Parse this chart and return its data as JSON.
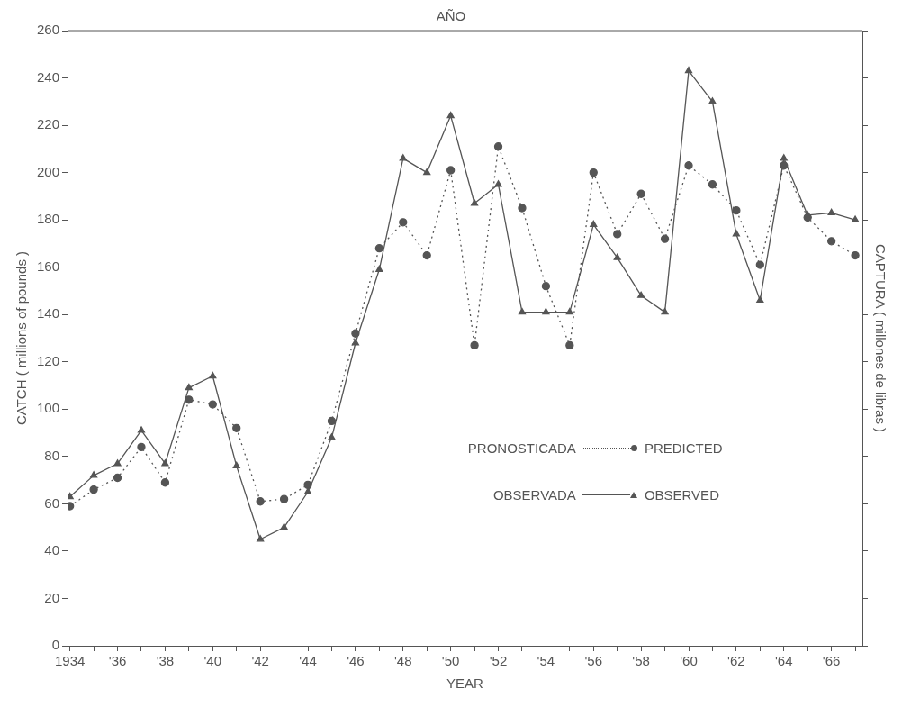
{
  "chart_data": {
    "type": "line",
    "title": "AÑO",
    "xlabel": "YEAR",
    "ylabel": "CATCH ( millions of pounds )",
    "y2label": "CAPTURA ( millones de libras )",
    "x": [
      1934,
      1935,
      1936,
      1937,
      1938,
      1939,
      1940,
      1941,
      1942,
      1943,
      1944,
      1945,
      1946,
      1947,
      1948,
      1949,
      1950,
      1951,
      1952,
      1953,
      1954,
      1955,
      1956,
      1957,
      1958,
      1959,
      1960,
      1961,
      1962,
      1963,
      1964,
      1965,
      1966,
      1967
    ],
    "series": [
      {
        "name": "PREDICTED",
        "color": "#555555",
        "marker": "circle",
        "line_style": "dotted",
        "values": [
          59,
          66,
          71,
          84,
          69,
          104,
          102,
          92,
          61,
          62,
          68,
          95,
          132,
          168,
          179,
          165,
          201,
          127,
          211,
          185,
          152,
          127,
          200,
          174,
          191,
          172,
          203,
          195,
          184,
          161,
          203,
          181,
          171,
          165
        ]
      },
      {
        "name": "OBSERVED",
        "color": "#555555",
        "marker": "triangle",
        "line_style": "solid",
        "values": [
          63,
          72,
          77,
          91,
          77,
          109,
          114,
          76,
          45,
          50,
          65,
          88,
          128,
          159,
          206,
          200,
          224,
          187,
          195,
          141,
          141,
          141,
          178,
          164,
          148,
          141,
          243,
          230,
          174,
          146,
          206,
          182,
          183,
          180
        ]
      }
    ],
    "annotations": [
      "PRONOSTICADA",
      "OBSERVADA"
    ],
    "xlim": [
      1933.9,
      1967.3
    ],
    "xticks": [
      {
        "value": 1934,
        "label": "1934"
      },
      {
        "value": 1935,
        "label": null
      },
      {
        "value": 1936,
        "label": "'36"
      },
      {
        "value": 1937,
        "label": null
      },
      {
        "value": 1938,
        "label": "'38"
      },
      {
        "value": 1939,
        "label": null
      },
      {
        "value": 1940,
        "label": "'40"
      },
      {
        "value": 1941,
        "label": null
      },
      {
        "value": 1942,
        "label": "'42"
      },
      {
        "value": 1943,
        "label": null
      },
      {
        "value": 1944,
        "label": "'44"
      },
      {
        "value": 1945,
        "label": null
      },
      {
        "value": 1946,
        "label": "'46"
      },
      {
        "value": 1947,
        "label": null
      },
      {
        "value": 1948,
        "label": "'48"
      },
      {
        "value": 1949,
        "label": null
      },
      {
        "value": 1950,
        "label": "'50"
      },
      {
        "value": 1951,
        "label": null
      },
      {
        "value": 1952,
        "label": "'52"
      },
      {
        "value": 1953,
        "label": null
      },
      {
        "value": 1954,
        "label": "'54"
      },
      {
        "value": 1955,
        "label": null
      },
      {
        "value": 1956,
        "label": "'56"
      },
      {
        "value": 1957,
        "label": null
      },
      {
        "value": 1958,
        "label": "'58"
      },
      {
        "value": 1959,
        "label": null
      },
      {
        "value": 1960,
        "label": "'60"
      },
      {
        "value": 1961,
        "label": null
      },
      {
        "value": 1962,
        "label": "'62"
      },
      {
        "value": 1963,
        "label": null
      },
      {
        "value": 1964,
        "label": "'64"
      },
      {
        "value": 1965,
        "label": null
      },
      {
        "value": 1966,
        "label": "'66"
      },
      {
        "value": 1967,
        "label": null
      }
    ],
    "ylim": [
      0,
      260
    ],
    "yticks": [
      0,
      20,
      40,
      60,
      80,
      100,
      120,
      140,
      160,
      180,
      200,
      220,
      240,
      260
    ],
    "grid": false,
    "legend": "center right"
  }
}
